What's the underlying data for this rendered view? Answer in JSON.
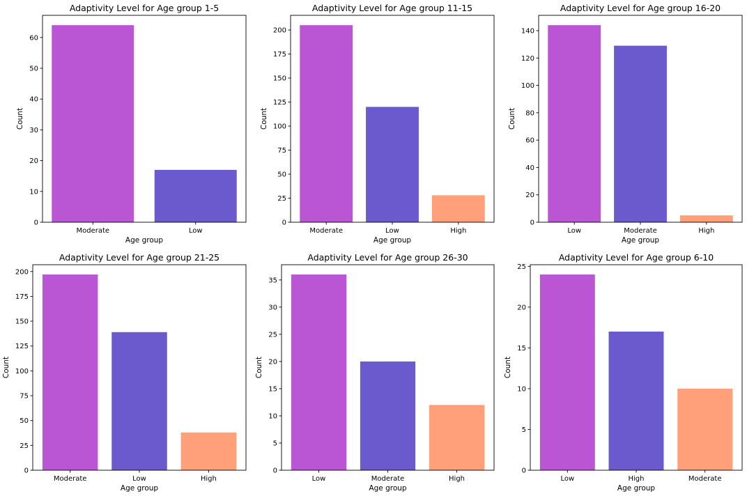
{
  "chart_data": [
    {
      "type": "bar",
      "title": "Adaptivity Level for Age group 1-5",
      "xlabel": "Age group",
      "ylabel": "Count",
      "categories": [
        "Moderate",
        "Low"
      ],
      "values": [
        64,
        17
      ],
      "ylim": [
        0,
        67.2
      ],
      "yticks": [
        0,
        10,
        20,
        30,
        40,
        50,
        60
      ],
      "bar_colors": [
        "#ba55d3",
        "#6a5acd"
      ]
    },
    {
      "type": "bar",
      "title": "Adaptivity Level for Age group 11-15",
      "xlabel": "Age group",
      "ylabel": "Count",
      "categories": [
        "Moderate",
        "Low",
        "High"
      ],
      "values": [
        205,
        120,
        28
      ],
      "ylim": [
        0,
        215.25
      ],
      "yticks": [
        0,
        25,
        50,
        75,
        100,
        125,
        150,
        175,
        200
      ],
      "bar_colors": [
        "#ba55d3",
        "#6a5acd",
        "#ffa07a"
      ]
    },
    {
      "type": "bar",
      "title": "Adaptivity Level for Age group 16-20",
      "xlabel": "Age group",
      "ylabel": "Count",
      "categories": [
        "Low",
        "Moderate",
        "High"
      ],
      "values": [
        144,
        129,
        5
      ],
      "ylim": [
        0,
        151.2
      ],
      "yticks": [
        0,
        20,
        40,
        60,
        80,
        100,
        120,
        140
      ],
      "bar_colors": [
        "#ba55d3",
        "#6a5acd",
        "#ffa07a"
      ]
    },
    {
      "type": "bar",
      "title": "Adaptivity Level for Age group 21-25",
      "xlabel": "Age group",
      "ylabel": "Count",
      "categories": [
        "Moderate",
        "Low",
        "High"
      ],
      "values": [
        197,
        139,
        38
      ],
      "ylim": [
        0,
        206.85
      ],
      "yticks": [
        0,
        25,
        50,
        75,
        100,
        125,
        150,
        175,
        200
      ],
      "bar_colors": [
        "#ba55d3",
        "#6a5acd",
        "#ffa07a"
      ]
    },
    {
      "type": "bar",
      "title": "Adaptivity Level for Age group 26-30",
      "xlabel": "Age group",
      "ylabel": "Count",
      "categories": [
        "Low",
        "Moderate",
        "High"
      ],
      "values": [
        36,
        20,
        12
      ],
      "ylim": [
        0,
        37.8
      ],
      "yticks": [
        0,
        5,
        10,
        15,
        20,
        25,
        30,
        35
      ],
      "bar_colors": [
        "#ba55d3",
        "#6a5acd",
        "#ffa07a"
      ]
    },
    {
      "type": "bar",
      "title": "Adaptivity Level for Age group 6-10",
      "xlabel": "Age group",
      "ylabel": "Count",
      "categories": [
        "Low",
        "High",
        "Moderate"
      ],
      "values": [
        24,
        17,
        10
      ],
      "ylim": [
        0,
        25.2
      ],
      "yticks": [
        0,
        5,
        10,
        15,
        20,
        25
      ],
      "bar_colors": [
        "#ba55d3",
        "#6a5acd",
        "#ffa07a"
      ]
    }
  ]
}
